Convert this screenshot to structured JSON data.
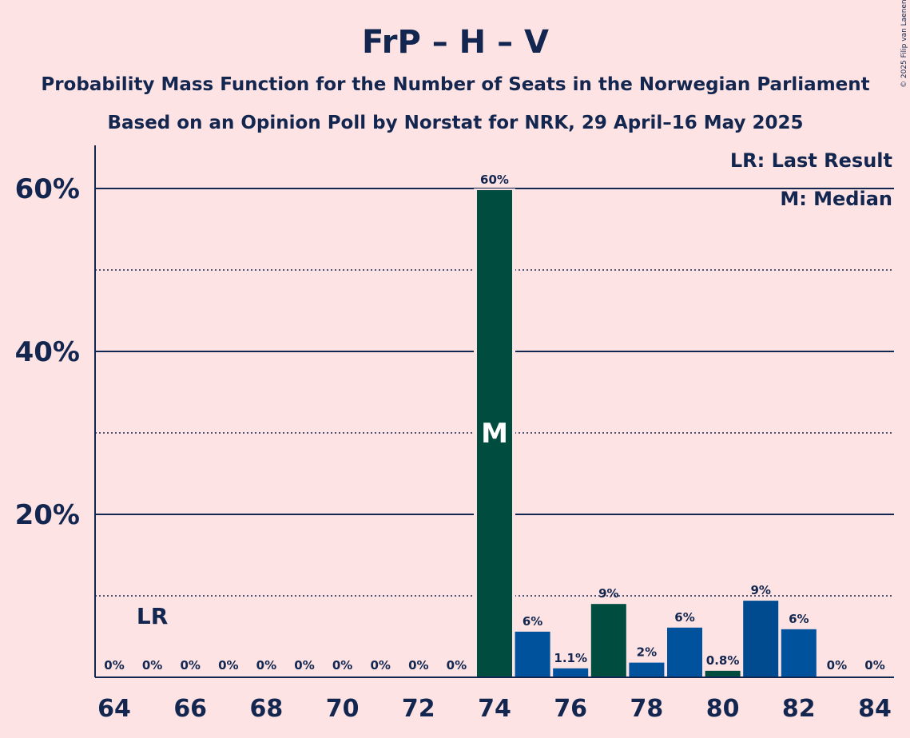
{
  "chart_data": {
    "type": "bar",
    "title": "FrP – H – V",
    "subtitle": "Probability Mass Function for the Number of Seats in the Norwegian Parliament",
    "subtitle2": "Based on an Opinion Poll by Norstat for NRK, 29 April–16 May 2025",
    "copyright": "© 2025 Filip van Laenen",
    "legend": {
      "last_result": "LR: Last Result",
      "median": "M: Median",
      "position": "top-right"
    },
    "x": [
      64,
      65,
      66,
      67,
      68,
      69,
      70,
      71,
      72,
      73,
      74,
      75,
      76,
      77,
      78,
      79,
      80,
      81,
      82,
      83,
      84
    ],
    "values": [
      0,
      0,
      0,
      0,
      0,
      0,
      0,
      0,
      0,
      0,
      59.8,
      5.6,
      1.1,
      9.0,
      1.8,
      6.1,
      0.8,
      9.4,
      5.9,
      0,
      0
    ],
    "labels": [
      "0%",
      "0%",
      "0%",
      "0%",
      "0%",
      "0%",
      "0%",
      "0%",
      "0%",
      "0%",
      "60%",
      "6%",
      "1.1%",
      "9%",
      "2%",
      "6%",
      "0.8%",
      "9%",
      "6%",
      "0%",
      "0%"
    ],
    "x_tick_labels": [
      "64",
      "66",
      "68",
      "70",
      "72",
      "74",
      "76",
      "78",
      "80",
      "82",
      "84"
    ],
    "y_tick_labels": [
      "20%",
      "40%",
      "60%"
    ],
    "ylim": [
      0,
      65
    ],
    "last_result_seat": 65,
    "last_result_label": "LR",
    "median_seat": 74,
    "median_label": "M",
    "colors": {
      "dark_green": "#004d40",
      "blue_dark": "#004a8f",
      "blue_mid": "#00529c",
      "axis": "#12264f",
      "background": "#fde3e3"
    }
  }
}
